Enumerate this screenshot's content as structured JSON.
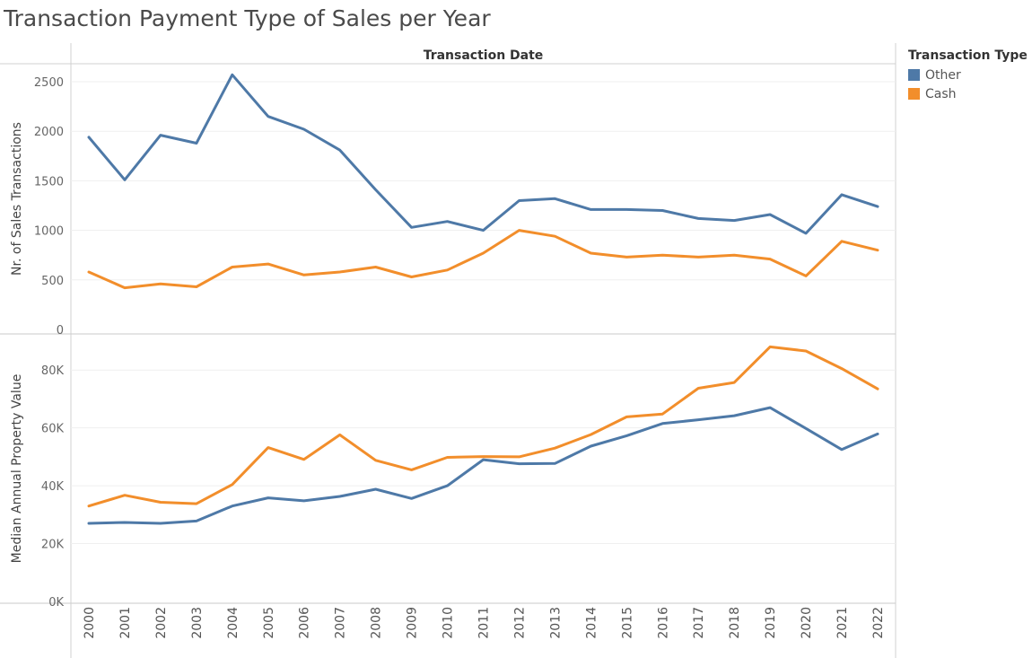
{
  "title": "Transaction Payment Type of Sales per Year",
  "legend": {
    "title": "Transaction Type",
    "items": [
      {
        "label": "Other",
        "color": "#4e79a7"
      },
      {
        "label": "Cash",
        "color": "#f28e2b"
      }
    ]
  },
  "chart_data": [
    {
      "type": "line",
      "column_header": "Transaction Date",
      "ylabel": "Nr. of Sales Transactions",
      "ylim": [
        0,
        2600
      ],
      "yticks": [
        0,
        500,
        1000,
        1500,
        2000,
        2500
      ],
      "ytick_labels": [
        "0",
        "500",
        "1000",
        "1500",
        "2000",
        "2500"
      ],
      "x": [
        "2000",
        "2001",
        "2002",
        "2003",
        "2004",
        "2005",
        "2006",
        "2007",
        "2008",
        "2009",
        "2010",
        "2011",
        "2012",
        "2013",
        "2014",
        "2015",
        "2016",
        "2017",
        "2018",
        "2019",
        "2020",
        "2021",
        "2022"
      ],
      "series": [
        {
          "name": "Other",
          "color": "#4e79a7",
          "values": [
            1940,
            1510,
            1960,
            1880,
            2570,
            2150,
            2020,
            1810,
            1410,
            1030,
            1090,
            1000,
            1300,
            1320,
            1210,
            1210,
            1200,
            1120,
            1100,
            1160,
            970,
            1360,
            1240
          ]
        },
        {
          "name": "Cash",
          "color": "#f28e2b",
          "values": [
            580,
            420,
            460,
            430,
            630,
            660,
            550,
            580,
            630,
            530,
            600,
            770,
            1000,
            940,
            770,
            730,
            750,
            730,
            750,
            710,
            540,
            890,
            800
          ]
        }
      ]
    },
    {
      "type": "line",
      "ylabel": "Median Annual Property Value",
      "ylim": [
        0,
        90000
      ],
      "yticks": [
        0,
        20000,
        40000,
        60000,
        80000
      ],
      "ytick_labels": [
        "0K",
        "20K",
        "40K",
        "60K",
        "80K"
      ],
      "x": [
        "2000",
        "2001",
        "2002",
        "2003",
        "2004",
        "2005",
        "2006",
        "2007",
        "2008",
        "2009",
        "2010",
        "2011",
        "2012",
        "2013",
        "2014",
        "2015",
        "2016",
        "2017",
        "2018",
        "2019",
        "2020",
        "2021",
        "2022"
      ],
      "series": [
        {
          "name": "Other",
          "color": "#4e79a7",
          "values": [
            27000,
            27300,
            27000,
            27800,
            33000,
            35800,
            34800,
            36300,
            38800,
            35600,
            40000,
            49000,
            47600,
            47700,
            53700,
            57300,
            61500,
            62800,
            64200,
            67000,
            59800,
            52500,
            57900
          ]
        },
        {
          "name": "Cash",
          "color": "#f28e2b",
          "values": [
            33000,
            36700,
            34300,
            33800,
            40400,
            53200,
            49100,
            57600,
            48800,
            45500,
            49800,
            50100,
            50000,
            53000,
            57700,
            63800,
            64800,
            73700,
            75700,
            88000,
            86600,
            80500,
            73500
          ]
        }
      ]
    }
  ]
}
